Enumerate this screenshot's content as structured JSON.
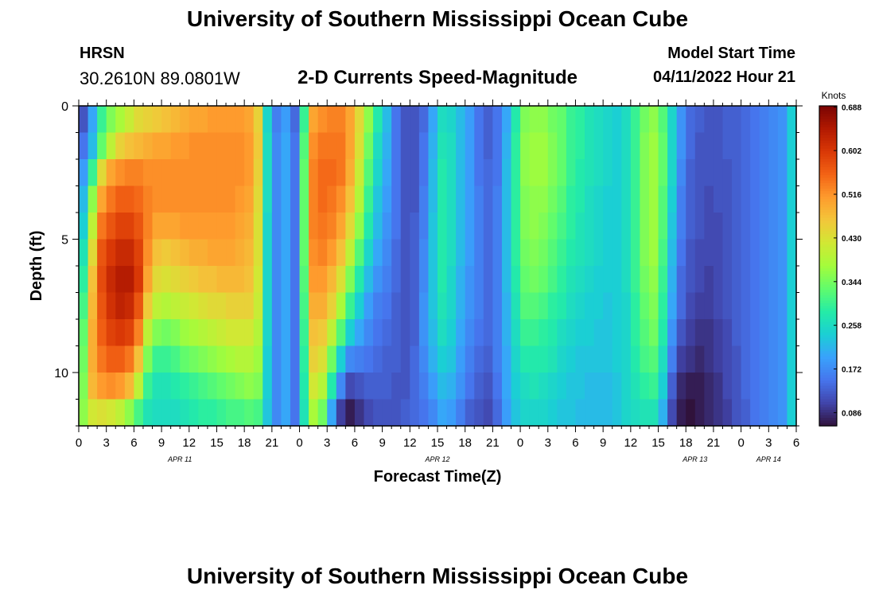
{
  "header": {
    "title": "University of Southern Mississippi Ocean Cube",
    "station": "HRSN",
    "coords": "30.2610N  89.0801W",
    "subtitle": "2-D Currents Speed-Magnitude",
    "model_start_label": "Model Start Time",
    "model_start_value": "04/11/2022 Hour 21"
  },
  "footer": {
    "title": "University of Southern Mississippi Ocean Cube"
  },
  "chart_data": {
    "type": "heatmap",
    "title": "2-D Currents Speed-Magnitude",
    "xlabel": "Forecast Time(Z)",
    "ylabel": "Depth (ft)",
    "x_tick_labels": [
      "0",
      "3",
      "6",
      "9",
      "12",
      "15",
      "18",
      "21",
      "0",
      "3",
      "6",
      "9",
      "12",
      "15",
      "18",
      "21",
      "0",
      "3",
      "6",
      "9",
      "12",
      "15",
      "18",
      "21",
      "0",
      "3",
      "6"
    ],
    "date_labels": [
      "APR 11",
      "APR 12",
      "APR 13",
      "APR 14"
    ],
    "y_tick_labels": [
      "0",
      "5",
      "10"
    ],
    "y_range_ft": [
      0,
      12
    ],
    "x_range_hours": [
      0,
      78
    ],
    "colorbar": {
      "label": "Knots",
      "ticks": [
        "0.688",
        "0.602",
        "0.516",
        "0.430",
        "0.344",
        "0.258",
        "0.172",
        "0.086"
      ],
      "min": 0.06,
      "max": 0.69
    },
    "colormap": [
      "#30123b",
      "#4145ab",
      "#4675ed",
      "#39a2fc",
      "#1bcfd4",
      "#24eca6",
      "#61fc6c",
      "#a4fc3b",
      "#d1e834",
      "#f3c63a",
      "#fe9b2d",
      "#f36315",
      "#d93806",
      "#b11901",
      "#7a0403"
    ],
    "x_hours": [
      0,
      1,
      2,
      3,
      4,
      5,
      6,
      7,
      8,
      9,
      10,
      11,
      12,
      13,
      14,
      15,
      16,
      17,
      18,
      19,
      20,
      21,
      22,
      23,
      24,
      25,
      26,
      27,
      28,
      29,
      30,
      31,
      32,
      33,
      34,
      35,
      36,
      37,
      38,
      39,
      40,
      41,
      42,
      43,
      44,
      45,
      46,
      47,
      48,
      49,
      50,
      51,
      52,
      53,
      54,
      55,
      56,
      57,
      58,
      59,
      60,
      61,
      62,
      63,
      64,
      65,
      66,
      67,
      68,
      69,
      70,
      71,
      72,
      73,
      74,
      75,
      76,
      77
    ],
    "depth_rows_ft": [
      0,
      1,
      2,
      3,
      4,
      5,
      6,
      7,
      8,
      9,
      10,
      11
    ],
    "speed_knots": [
      [
        0.12,
        0.2,
        0.3,
        0.35,
        0.38,
        0.41,
        0.44,
        0.45,
        0.46,
        0.47,
        0.48,
        0.49,
        0.5,
        0.5,
        0.51,
        0.51,
        0.51,
        0.51,
        0.5,
        0.45,
        0.25,
        0.16,
        0.19,
        0.14,
        0.3,
        0.5,
        0.52,
        0.53,
        0.53,
        0.5,
        0.44,
        0.36,
        0.28,
        0.22,
        0.15,
        0.12,
        0.12,
        0.14,
        0.2,
        0.26,
        0.25,
        0.22,
        0.19,
        0.15,
        0.13,
        0.15,
        0.2,
        0.28,
        0.35,
        0.36,
        0.36,
        0.34,
        0.33,
        0.3,
        0.29,
        0.27,
        0.26,
        0.25,
        0.24,
        0.26,
        0.3,
        0.34,
        0.36,
        0.32,
        0.25,
        0.18,
        0.14,
        0.13,
        0.12,
        0.12,
        0.13,
        0.13,
        0.14,
        0.15,
        0.16,
        0.17,
        0.18,
        0.24
      ],
      [
        0.15,
        0.22,
        0.33,
        0.4,
        0.45,
        0.47,
        0.48,
        0.49,
        0.5,
        0.5,
        0.51,
        0.51,
        0.52,
        0.52,
        0.52,
        0.52,
        0.52,
        0.52,
        0.51,
        0.46,
        0.26,
        0.17,
        0.2,
        0.15,
        0.32,
        0.52,
        0.54,
        0.54,
        0.54,
        0.5,
        0.43,
        0.34,
        0.26,
        0.21,
        0.15,
        0.12,
        0.12,
        0.15,
        0.21,
        0.27,
        0.26,
        0.22,
        0.19,
        0.15,
        0.13,
        0.15,
        0.21,
        0.29,
        0.36,
        0.37,
        0.37,
        0.35,
        0.33,
        0.3,
        0.29,
        0.27,
        0.26,
        0.25,
        0.24,
        0.26,
        0.3,
        0.35,
        0.37,
        0.33,
        0.25,
        0.18,
        0.14,
        0.12,
        0.12,
        0.12,
        0.13,
        0.13,
        0.14,
        0.15,
        0.16,
        0.17,
        0.18,
        0.24
      ],
      [
        0.19,
        0.3,
        0.44,
        0.5,
        0.52,
        0.53,
        0.53,
        0.52,
        0.52,
        0.52,
        0.52,
        0.52,
        0.52,
        0.52,
        0.52,
        0.52,
        0.52,
        0.52,
        0.51,
        0.45,
        0.26,
        0.17,
        0.2,
        0.15,
        0.33,
        0.53,
        0.55,
        0.55,
        0.54,
        0.49,
        0.41,
        0.32,
        0.25,
        0.2,
        0.15,
        0.12,
        0.12,
        0.15,
        0.22,
        0.28,
        0.26,
        0.22,
        0.19,
        0.15,
        0.14,
        0.15,
        0.22,
        0.29,
        0.36,
        0.37,
        0.37,
        0.35,
        0.33,
        0.3,
        0.28,
        0.27,
        0.26,
        0.25,
        0.24,
        0.26,
        0.3,
        0.35,
        0.37,
        0.33,
        0.25,
        0.17,
        0.13,
        0.12,
        0.12,
        0.12,
        0.12,
        0.13,
        0.14,
        0.15,
        0.16,
        0.17,
        0.18,
        0.24
      ],
      [
        0.22,
        0.36,
        0.5,
        0.54,
        0.56,
        0.56,
        0.55,
        0.53,
        0.52,
        0.52,
        0.52,
        0.52,
        0.52,
        0.52,
        0.52,
        0.52,
        0.52,
        0.51,
        0.5,
        0.44,
        0.26,
        0.17,
        0.2,
        0.15,
        0.33,
        0.53,
        0.55,
        0.54,
        0.52,
        0.47,
        0.39,
        0.3,
        0.23,
        0.19,
        0.15,
        0.12,
        0.12,
        0.16,
        0.22,
        0.28,
        0.26,
        0.22,
        0.19,
        0.16,
        0.14,
        0.16,
        0.22,
        0.29,
        0.35,
        0.36,
        0.36,
        0.34,
        0.32,
        0.29,
        0.28,
        0.26,
        0.25,
        0.24,
        0.24,
        0.26,
        0.3,
        0.35,
        0.37,
        0.32,
        0.24,
        0.16,
        0.13,
        0.12,
        0.11,
        0.12,
        0.12,
        0.13,
        0.14,
        0.15,
        0.16,
        0.17,
        0.18,
        0.24
      ],
      [
        0.24,
        0.4,
        0.54,
        0.57,
        0.59,
        0.59,
        0.57,
        0.53,
        0.5,
        0.5,
        0.5,
        0.51,
        0.51,
        0.51,
        0.51,
        0.51,
        0.51,
        0.5,
        0.49,
        0.43,
        0.25,
        0.17,
        0.2,
        0.15,
        0.33,
        0.53,
        0.54,
        0.53,
        0.5,
        0.44,
        0.36,
        0.28,
        0.22,
        0.18,
        0.15,
        0.12,
        0.13,
        0.16,
        0.23,
        0.28,
        0.26,
        0.22,
        0.19,
        0.16,
        0.14,
        0.16,
        0.22,
        0.29,
        0.35,
        0.36,
        0.35,
        0.33,
        0.31,
        0.29,
        0.27,
        0.26,
        0.25,
        0.24,
        0.24,
        0.26,
        0.3,
        0.35,
        0.37,
        0.32,
        0.23,
        0.16,
        0.13,
        0.12,
        0.11,
        0.11,
        0.12,
        0.13,
        0.14,
        0.15,
        0.16,
        0.17,
        0.18,
        0.24
      ],
      [
        0.27,
        0.44,
        0.57,
        0.6,
        0.62,
        0.62,
        0.59,
        0.52,
        0.47,
        0.46,
        0.47,
        0.48,
        0.49,
        0.49,
        0.5,
        0.5,
        0.5,
        0.49,
        0.48,
        0.43,
        0.25,
        0.17,
        0.2,
        0.15,
        0.33,
        0.52,
        0.53,
        0.51,
        0.47,
        0.4,
        0.32,
        0.25,
        0.2,
        0.17,
        0.14,
        0.12,
        0.13,
        0.17,
        0.23,
        0.28,
        0.26,
        0.22,
        0.19,
        0.16,
        0.14,
        0.16,
        0.22,
        0.29,
        0.34,
        0.35,
        0.34,
        0.32,
        0.3,
        0.28,
        0.27,
        0.26,
        0.25,
        0.24,
        0.24,
        0.26,
        0.3,
        0.35,
        0.37,
        0.31,
        0.22,
        0.15,
        0.12,
        0.11,
        0.11,
        0.11,
        0.12,
        0.13,
        0.14,
        0.15,
        0.16,
        0.17,
        0.18,
        0.24
      ],
      [
        0.29,
        0.47,
        0.58,
        0.62,
        0.64,
        0.64,
        0.6,
        0.5,
        0.44,
        0.43,
        0.44,
        0.45,
        0.46,
        0.47,
        0.47,
        0.48,
        0.48,
        0.48,
        0.47,
        0.42,
        0.25,
        0.17,
        0.2,
        0.15,
        0.32,
        0.51,
        0.51,
        0.48,
        0.43,
        0.35,
        0.28,
        0.22,
        0.18,
        0.16,
        0.14,
        0.12,
        0.13,
        0.17,
        0.23,
        0.28,
        0.25,
        0.21,
        0.18,
        0.16,
        0.14,
        0.16,
        0.22,
        0.28,
        0.33,
        0.34,
        0.33,
        0.31,
        0.29,
        0.27,
        0.26,
        0.25,
        0.24,
        0.24,
        0.24,
        0.26,
        0.3,
        0.34,
        0.36,
        0.3,
        0.21,
        0.14,
        0.12,
        0.11,
        0.1,
        0.11,
        0.12,
        0.13,
        0.14,
        0.15,
        0.16,
        0.17,
        0.18,
        0.24
      ],
      [
        0.31,
        0.48,
        0.57,
        0.61,
        0.63,
        0.62,
        0.57,
        0.46,
        0.4,
        0.39,
        0.4,
        0.41,
        0.42,
        0.43,
        0.44,
        0.44,
        0.45,
        0.45,
        0.45,
        0.41,
        0.25,
        0.17,
        0.2,
        0.15,
        0.31,
        0.49,
        0.49,
        0.45,
        0.38,
        0.3,
        0.24,
        0.19,
        0.16,
        0.15,
        0.13,
        0.12,
        0.13,
        0.18,
        0.23,
        0.27,
        0.25,
        0.21,
        0.18,
        0.16,
        0.14,
        0.16,
        0.21,
        0.27,
        0.32,
        0.32,
        0.31,
        0.29,
        0.28,
        0.26,
        0.25,
        0.24,
        0.24,
        0.23,
        0.24,
        0.25,
        0.29,
        0.33,
        0.35,
        0.29,
        0.2,
        0.14,
        0.11,
        0.1,
        0.1,
        0.11,
        0.12,
        0.13,
        0.14,
        0.15,
        0.16,
        0.17,
        0.18,
        0.24
      ],
      [
        0.33,
        0.49,
        0.56,
        0.59,
        0.6,
        0.59,
        0.53,
        0.4,
        0.35,
        0.34,
        0.35,
        0.37,
        0.38,
        0.39,
        0.4,
        0.41,
        0.42,
        0.42,
        0.42,
        0.39,
        0.25,
        0.17,
        0.2,
        0.15,
        0.3,
        0.47,
        0.46,
        0.4,
        0.32,
        0.24,
        0.2,
        0.17,
        0.15,
        0.14,
        0.13,
        0.12,
        0.13,
        0.18,
        0.22,
        0.26,
        0.24,
        0.2,
        0.17,
        0.15,
        0.14,
        0.16,
        0.21,
        0.26,
        0.3,
        0.3,
        0.29,
        0.28,
        0.26,
        0.25,
        0.24,
        0.24,
        0.23,
        0.23,
        0.24,
        0.25,
        0.29,
        0.32,
        0.34,
        0.28,
        0.18,
        0.12,
        0.1,
        0.09,
        0.09,
        0.1,
        0.11,
        0.13,
        0.14,
        0.15,
        0.16,
        0.17,
        0.18,
        0.24
      ],
      [
        0.34,
        0.49,
        0.54,
        0.56,
        0.56,
        0.54,
        0.47,
        0.35,
        0.3,
        0.3,
        0.31,
        0.33,
        0.34,
        0.35,
        0.36,
        0.37,
        0.38,
        0.39,
        0.39,
        0.37,
        0.24,
        0.17,
        0.2,
        0.15,
        0.29,
        0.45,
        0.43,
        0.34,
        0.24,
        0.17,
        0.16,
        0.15,
        0.14,
        0.13,
        0.13,
        0.12,
        0.14,
        0.17,
        0.21,
        0.24,
        0.23,
        0.19,
        0.16,
        0.14,
        0.13,
        0.16,
        0.2,
        0.25,
        0.28,
        0.28,
        0.28,
        0.27,
        0.25,
        0.24,
        0.23,
        0.23,
        0.23,
        0.23,
        0.24,
        0.25,
        0.28,
        0.31,
        0.32,
        0.26,
        0.16,
        0.1,
        0.09,
        0.08,
        0.09,
        0.1,
        0.11,
        0.12,
        0.14,
        0.15,
        0.16,
        0.17,
        0.18,
        0.24
      ],
      [
        0.35,
        0.48,
        0.51,
        0.52,
        0.51,
        0.48,
        0.4,
        0.3,
        0.27,
        0.27,
        0.28,
        0.29,
        0.3,
        0.31,
        0.32,
        0.33,
        0.34,
        0.35,
        0.36,
        0.35,
        0.24,
        0.17,
        0.2,
        0.15,
        0.28,
        0.42,
        0.39,
        0.28,
        0.17,
        0.11,
        0.12,
        0.13,
        0.13,
        0.13,
        0.12,
        0.12,
        0.14,
        0.16,
        0.19,
        0.22,
        0.21,
        0.18,
        0.15,
        0.13,
        0.12,
        0.15,
        0.2,
        0.24,
        0.26,
        0.27,
        0.26,
        0.25,
        0.24,
        0.23,
        0.23,
        0.22,
        0.22,
        0.22,
        0.23,
        0.25,
        0.27,
        0.29,
        0.3,
        0.24,
        0.13,
        0.08,
        0.07,
        0.07,
        0.08,
        0.09,
        0.11,
        0.12,
        0.14,
        0.15,
        0.16,
        0.17,
        0.18,
        0.24
      ],
      [
        0.36,
        0.42,
        0.43,
        0.42,
        0.4,
        0.36,
        0.31,
        0.27,
        0.26,
        0.26,
        0.26,
        0.27,
        0.28,
        0.29,
        0.29,
        0.3,
        0.31,
        0.31,
        0.32,
        0.31,
        0.23,
        0.17,
        0.2,
        0.15,
        0.27,
        0.38,
        0.34,
        0.2,
        0.1,
        0.07,
        0.09,
        0.11,
        0.12,
        0.12,
        0.12,
        0.13,
        0.14,
        0.15,
        0.17,
        0.2,
        0.19,
        0.16,
        0.13,
        0.12,
        0.11,
        0.14,
        0.19,
        0.23,
        0.25,
        0.25,
        0.25,
        0.24,
        0.23,
        0.23,
        0.22,
        0.22,
        0.22,
        0.22,
        0.23,
        0.25,
        0.26,
        0.27,
        0.27,
        0.21,
        0.11,
        0.07,
        0.06,
        0.07,
        0.08,
        0.09,
        0.1,
        0.12,
        0.13,
        0.15,
        0.16,
        0.17,
        0.18,
        0.24
      ]
    ]
  }
}
